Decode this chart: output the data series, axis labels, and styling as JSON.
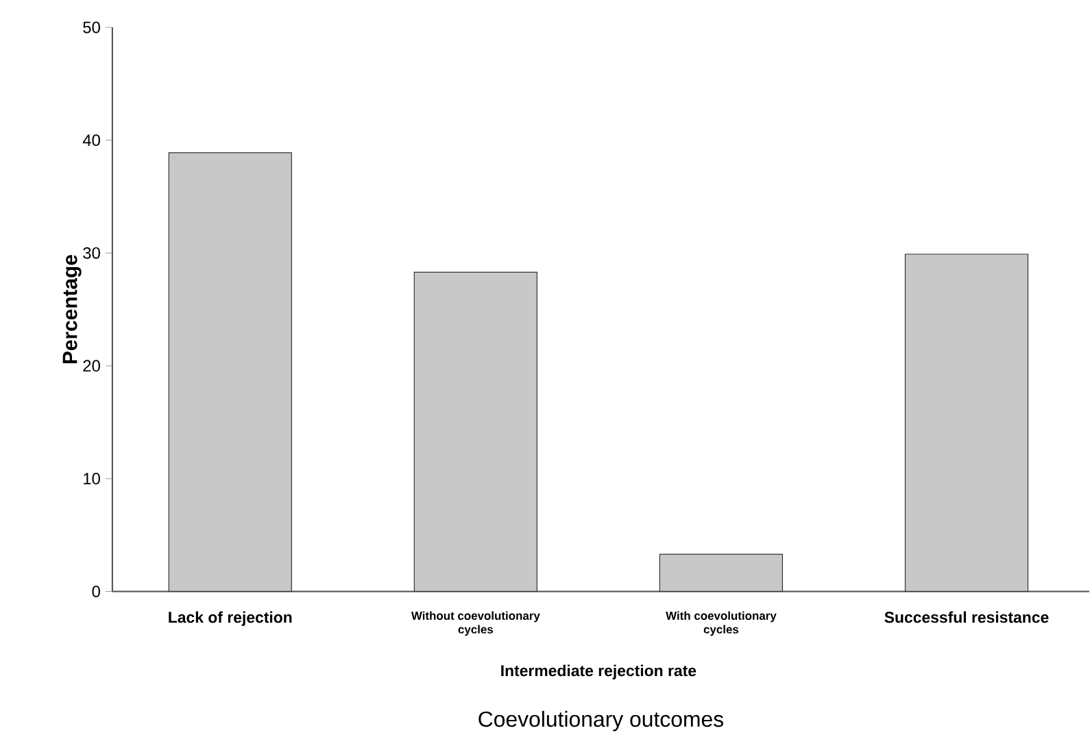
{
  "chart_data": {
    "type": "bar",
    "categories": [
      "Lack of rejection",
      "Without coevolutionary cycles",
      "With coevolutionary cycles",
      "Successful resistance"
    ],
    "values": [
      38.9,
      28.3,
      3.3,
      29.9
    ],
    "color": "#c8c8c8",
    "ylim": [
      0,
      50
    ],
    "yticks": [
      0,
      10,
      20,
      30,
      40,
      50
    ],
    "xlabel": "Coevolutionary outcomes",
    "ylabel": "Percentage",
    "annotations": [
      "Intermediate rejection rate"
    ],
    "grid": false
  }
}
